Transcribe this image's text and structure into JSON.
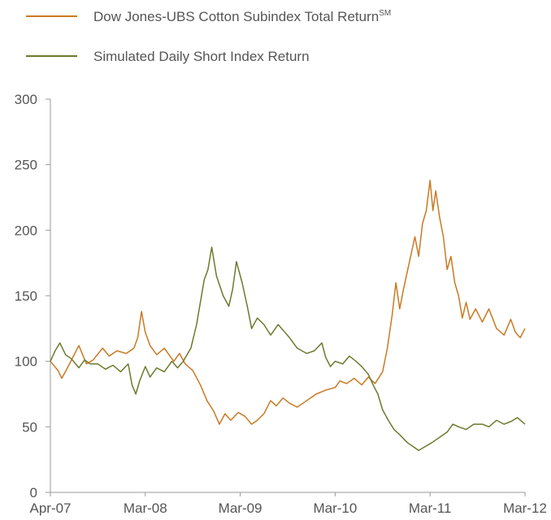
{
  "chart_data": {
    "type": "line",
    "title": "",
    "xlabel": "",
    "ylabel": "",
    "ylim": [
      0,
      300
    ],
    "y_ticks": [
      "0",
      "50",
      "100",
      "150",
      "200",
      "250",
      "300"
    ],
    "x_ticks": [
      "Apr-07",
      "Mar-08",
      "Mar-09",
      "Mar-10",
      "Mar-11",
      "Mar-12"
    ],
    "legend_placement": "top-left",
    "grid": false,
    "legend": [
      {
        "label": "Dow Jones-UBS Cotton Subindex Total Return",
        "superscript": "SM"
      },
      {
        "label": "Simulated Daily Short Index Return",
        "superscript": ""
      }
    ],
    "series": [
      {
        "name": "Dow Jones-UBS Cotton Subindex Total Return",
        "superscript": "SM",
        "color": "#C97A24",
        "points": [
          [
            0.0,
            100
          ],
          [
            0.08,
            93
          ],
          [
            0.12,
            87
          ],
          [
            0.18,
            95
          ],
          [
            0.25,
            105
          ],
          [
            0.3,
            112
          ],
          [
            0.38,
            98
          ],
          [
            0.45,
            101
          ],
          [
            0.55,
            110
          ],
          [
            0.62,
            104
          ],
          [
            0.7,
            108
          ],
          [
            0.8,
            106
          ],
          [
            0.88,
            110
          ],
          [
            0.92,
            118
          ],
          [
            0.96,
            138
          ],
          [
            1.0,
            122
          ],
          [
            1.05,
            112
          ],
          [
            1.12,
            105
          ],
          [
            1.2,
            110
          ],
          [
            1.3,
            100
          ],
          [
            1.36,
            106
          ],
          [
            1.42,
            98
          ],
          [
            1.5,
            93
          ],
          [
            1.58,
            82
          ],
          [
            1.65,
            70
          ],
          [
            1.72,
            62
          ],
          [
            1.78,
            52
          ],
          [
            1.84,
            60
          ],
          [
            1.9,
            55
          ],
          [
            1.98,
            61
          ],
          [
            2.05,
            58
          ],
          [
            2.12,
            52
          ],
          [
            2.18,
            55
          ],
          [
            2.25,
            60
          ],
          [
            2.32,
            70
          ],
          [
            2.38,
            66
          ],
          [
            2.45,
            72
          ],
          [
            2.52,
            68
          ],
          [
            2.6,
            65
          ],
          [
            2.7,
            70
          ],
          [
            2.8,
            75
          ],
          [
            2.9,
            78
          ],
          [
            3.0,
            80
          ],
          [
            3.05,
            85
          ],
          [
            3.12,
            83
          ],
          [
            3.2,
            87
          ],
          [
            3.28,
            82
          ],
          [
            3.35,
            88
          ],
          [
            3.42,
            83
          ],
          [
            3.5,
            92
          ],
          [
            3.55,
            110
          ],
          [
            3.6,
            135
          ],
          [
            3.64,
            160
          ],
          [
            3.68,
            140
          ],
          [
            3.72,
            155
          ],
          [
            3.78,
            175
          ],
          [
            3.84,
            195
          ],
          [
            3.88,
            180
          ],
          [
            3.92,
            205
          ],
          [
            3.96,
            215
          ],
          [
            4.0,
            238
          ],
          [
            4.03,
            215
          ],
          [
            4.06,
            230
          ],
          [
            4.1,
            210
          ],
          [
            4.14,
            195
          ],
          [
            4.18,
            170
          ],
          [
            4.22,
            180
          ],
          [
            4.26,
            160
          ],
          [
            4.3,
            150
          ],
          [
            4.34,
            133
          ],
          [
            4.38,
            145
          ],
          [
            4.42,
            132
          ],
          [
            4.48,
            140
          ],
          [
            4.55,
            130
          ],
          [
            4.62,
            140
          ],
          [
            4.7,
            125
          ],
          [
            4.78,
            120
          ],
          [
            4.85,
            132
          ],
          [
            4.9,
            122
          ],
          [
            4.95,
            118
          ],
          [
            5.0,
            125
          ]
        ]
      },
      {
        "name": "Simulated Daily Short Index Return",
        "superscript": "",
        "color": "#6B7A2C",
        "points": [
          [
            0.0,
            100
          ],
          [
            0.05,
            108
          ],
          [
            0.1,
            114
          ],
          [
            0.16,
            105
          ],
          [
            0.22,
            102
          ],
          [
            0.3,
            95
          ],
          [
            0.36,
            101
          ],
          [
            0.42,
            98
          ],
          [
            0.5,
            98
          ],
          [
            0.58,
            94
          ],
          [
            0.66,
            97
          ],
          [
            0.74,
            92
          ],
          [
            0.82,
            98
          ],
          [
            0.86,
            82
          ],
          [
            0.9,
            75
          ],
          [
            0.94,
            85
          ],
          [
            1.0,
            96
          ],
          [
            1.05,
            88
          ],
          [
            1.12,
            95
          ],
          [
            1.2,
            92
          ],
          [
            1.28,
            100
          ],
          [
            1.34,
            95
          ],
          [
            1.4,
            100
          ],
          [
            1.48,
            110
          ],
          [
            1.54,
            128
          ],
          [
            1.58,
            145
          ],
          [
            1.62,
            162
          ],
          [
            1.66,
            170
          ],
          [
            1.7,
            187
          ],
          [
            1.75,
            165
          ],
          [
            1.82,
            150
          ],
          [
            1.88,
            142
          ],
          [
            1.92,
            155
          ],
          [
            1.96,
            176
          ],
          [
            2.02,
            160
          ],
          [
            2.08,
            140
          ],
          [
            2.12,
            125
          ],
          [
            2.18,
            133
          ],
          [
            2.25,
            128
          ],
          [
            2.32,
            120
          ],
          [
            2.4,
            128
          ],
          [
            2.46,
            123
          ],
          [
            2.52,
            118
          ],
          [
            2.6,
            110
          ],
          [
            2.7,
            106
          ],
          [
            2.78,
            108
          ],
          [
            2.86,
            114
          ],
          [
            2.9,
            103
          ],
          [
            2.95,
            96
          ],
          [
            3.0,
            100
          ],
          [
            3.08,
            98
          ],
          [
            3.15,
            104
          ],
          [
            3.22,
            100
          ],
          [
            3.28,
            96
          ],
          [
            3.35,
            90
          ],
          [
            3.4,
            82
          ],
          [
            3.45,
            75
          ],
          [
            3.5,
            63
          ],
          [
            3.56,
            55
          ],
          [
            3.62,
            48
          ],
          [
            3.68,
            44
          ],
          [
            3.76,
            38
          ],
          [
            3.82,
            35
          ],
          [
            3.88,
            32
          ],
          [
            3.95,
            35
          ],
          [
            4.02,
            38
          ],
          [
            4.1,
            42
          ],
          [
            4.18,
            46
          ],
          [
            4.24,
            52
          ],
          [
            4.3,
            50
          ],
          [
            4.38,
            48
          ],
          [
            4.46,
            52
          ],
          [
            4.55,
            52
          ],
          [
            4.62,
            50
          ],
          [
            4.7,
            55
          ],
          [
            4.78,
            52
          ],
          [
            4.85,
            54
          ],
          [
            4.92,
            57
          ],
          [
            5.0,
            52
          ]
        ]
      }
    ]
  }
}
